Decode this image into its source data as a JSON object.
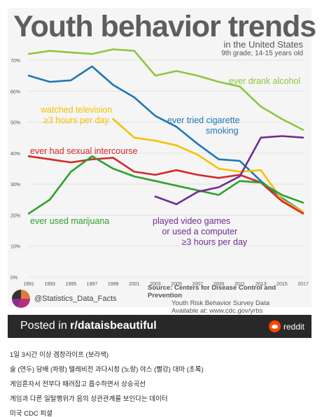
{
  "chart_data": {
    "type": "line",
    "title": "Youth behavior trends",
    "subtitle": "in the United States",
    "subtitle2": "9th grade, 14-15 years old",
    "x": [
      1991,
      1993,
      1995,
      1997,
      1999,
      2001,
      2003,
      2005,
      2007,
      2009,
      2011,
      2013,
      2015,
      2017
    ],
    "x_tick_labels": [
      "1991",
      "1993",
      "1995",
      "1997",
      "1999",
      "2001",
      "2003",
      "2005",
      "2007",
      "2009",
      "2011",
      "2013",
      "2015",
      "2017"
    ],
    "y_tick_labels": [
      "0%",
      "10%",
      "20%",
      "30%",
      "40%",
      "50%",
      "60%",
      "70%"
    ],
    "ylim": [
      0,
      70
    ],
    "grid": true,
    "series": [
      {
        "key": "alcohol",
        "name": "ever drank alcohol",
        "color": "#8dc63f",
        "values": [
          72,
          73,
          72.5,
          72,
          73.5,
          73,
          65,
          66.5,
          65,
          63,
          61.5,
          55,
          51,
          47.5
        ]
      },
      {
        "key": "cigarette",
        "name": "ever tried cigarette smoking",
        "color": "#1f77b4",
        "values": [
          65,
          63,
          63.5,
          68,
          62,
          58,
          52,
          48.5,
          43,
          38,
          37.5,
          31,
          25.5,
          21
        ]
      },
      {
        "key": "tv",
        "name": "watched television ≥3 hours per day",
        "color": "#f5c000",
        "values": [
          null,
          null,
          null,
          null,
          51,
          45,
          44,
          42.5,
          39.5,
          35,
          34,
          34.5,
          25,
          21
        ]
      },
      {
        "key": "sex",
        "name": "ever had sexual intercourse",
        "color": "#d62728",
        "values": [
          39,
          38,
          37,
          38,
          38.5,
          34,
          33,
          34.5,
          33,
          32,
          33,
          30.5,
          24.5,
          20.5
        ]
      },
      {
        "key": "marijuana",
        "name": "ever used marijuana",
        "color": "#2ca02c",
        "values": [
          20.5,
          25,
          34,
          39,
          35,
          32.5,
          31,
          29.5,
          28,
          26.5,
          31,
          30.5,
          26.5,
          24
        ]
      },
      {
        "key": "games",
        "name": "played video games or used a computer ≥3 hours per day",
        "color": "#6f2c91",
        "values": [
          null,
          null,
          null,
          null,
          null,
          null,
          26,
          23.5,
          27.5,
          29,
          32.5,
          45,
          45.5,
          45
        ]
      }
    ],
    "labels": {
      "alcohol": [
        "ever drank alcohol"
      ],
      "cigarette": [
        "ever tried cigarette",
        "smoking"
      ],
      "tv": [
        "watched television",
        "≥3 hours per day"
      ],
      "sex": [
        "ever had sexual intercourse"
      ],
      "marijuana": [
        "ever used marijuana"
      ],
      "games": [
        "played video games",
        "or used a computer",
        "≥3 hours per day"
      ]
    },
    "source_lines": [
      "Source: Centers for Disease Control and Prevention",
      "Youth Risk Behavior Survey Data",
      "Available at: www.cdc.gov/yrbs"
    ]
  },
  "credit": "@Statistics_Data_Facts",
  "banner": {
    "prefix": "Posted in ",
    "subreddit": "r/dataisbeautiful",
    "brand": "reddit"
  },
  "notes": [
    "1일 3시간 이상 겜창라이프 (보라색)",
    "술 (연두)  담배 (파랑)  텔레비전 과다시청 (노랑)  야스 (빨강)  대마 (초록)",
    "게임혼자서 전부다 때려잡고 흡수하면서 상승곡선",
    "게임과 다른 일탈행위가 음의 상관관계를 보인다는 데이터",
    "미국 CDC 피셜"
  ]
}
